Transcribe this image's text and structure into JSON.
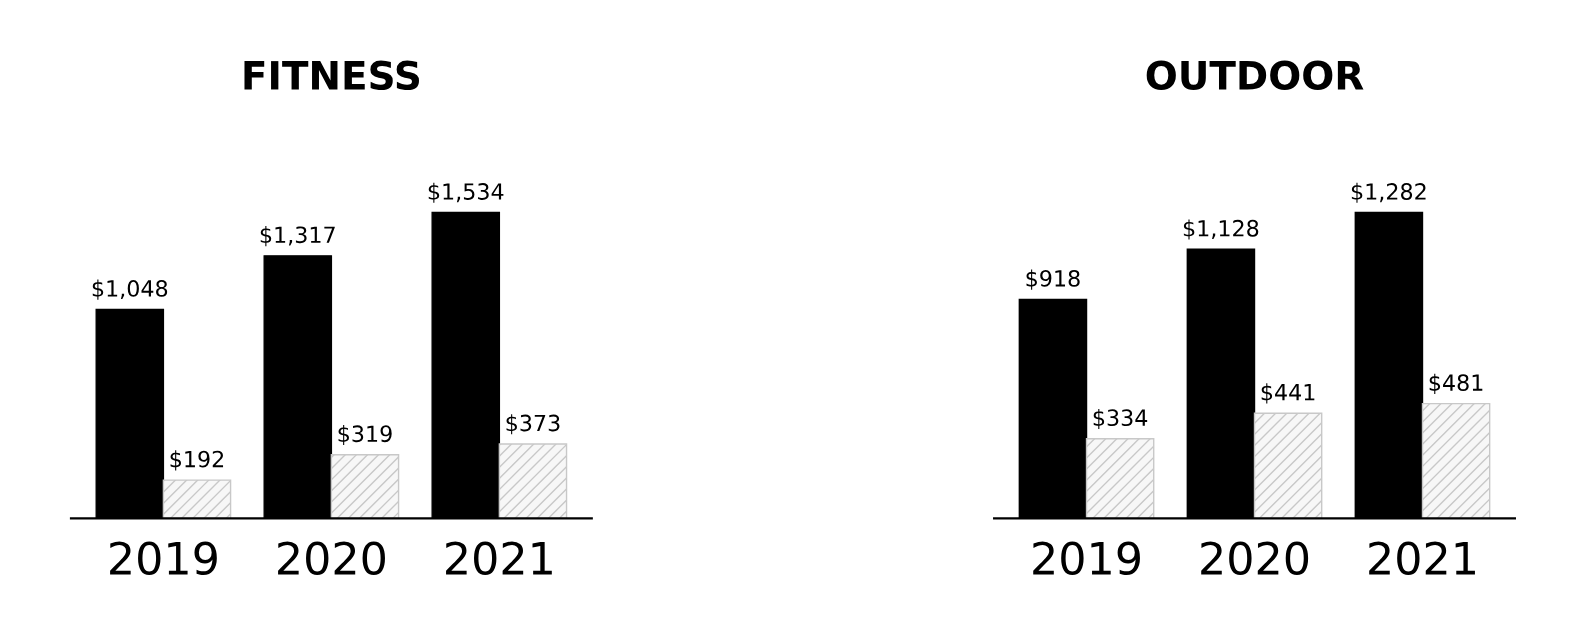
{
  "chart_data": [
    {
      "type": "bar",
      "title": "FITNESS",
      "categories": [
        "2019",
        "2020",
        "2021"
      ],
      "series": [
        {
          "color": "#000000",
          "values": [
            1048,
            1317,
            1534
          ],
          "value_labels": [
            "$1,048",
            "$1,317",
            "$1,534"
          ]
        },
        {
          "color": "#c8c8c8",
          "values": [
            192,
            319,
            373
          ],
          "value_labels": [
            "$192",
            "$319",
            "$373"
          ]
        }
      ],
      "grid": false,
      "legend": false
    },
    {
      "type": "bar",
      "title": "OUTDOOR",
      "categories": [
        "2019",
        "2020",
        "2021"
      ],
      "series": [
        {
          "color": "#000000",
          "values": [
            918,
            1128,
            1282
          ],
          "value_labels": [
            "$918",
            "$1,128",
            "$1,282"
          ]
        },
        {
          "color": "#c8c8c8",
          "values": [
            334,
            441,
            481
          ],
          "value_labels": [
            "$334",
            "$441",
            "$481"
          ]
        }
      ],
      "grid": false,
      "legend": false
    }
  ]
}
